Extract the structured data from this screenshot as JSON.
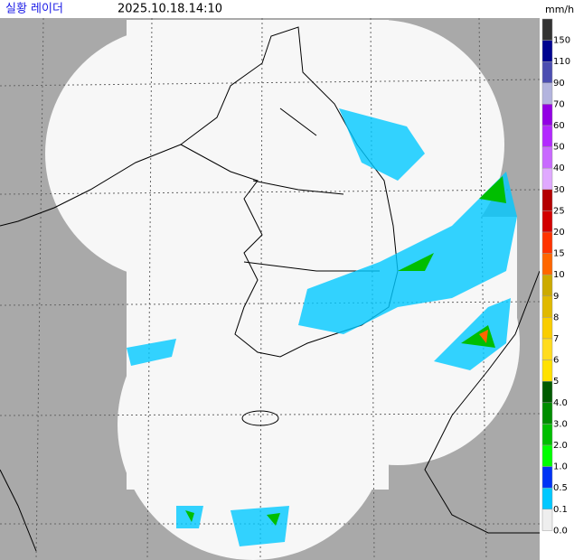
{
  "header": {
    "title": "실황 레이더",
    "time": "2025.10.18.14:10",
    "unit": "mm/h"
  },
  "legend": [
    {
      "label": "150",
      "color": "#333333"
    },
    {
      "label": "110",
      "color": "#00038f"
    },
    {
      "label": "90",
      "color": "#4c4eb1"
    },
    {
      "label": "70",
      "color": "#b3b4de"
    },
    {
      "label": "60",
      "color": "#9300e4"
    },
    {
      "label": "50",
      "color": "#b329ff"
    },
    {
      "label": "40",
      "color": "#c969ff"
    },
    {
      "label": "30",
      "color": "#e0a9ff"
    },
    {
      "label": "25",
      "color": "#b40000"
    },
    {
      "label": "20",
      "color": "#d20000"
    },
    {
      "label": "15",
      "color": "#ff3300"
    },
    {
      "label": "10",
      "color": "#ff6600"
    },
    {
      "label": "9",
      "color": "#ccaa00"
    },
    {
      "label": "8",
      "color": "#e0b900"
    },
    {
      "label": "7",
      "color": "#f9cd00"
    },
    {
      "label": "6",
      "color": "#ffdc1f"
    },
    {
      "label": "5",
      "color": "#ffe100"
    },
    {
      "label": "4.0",
      "color": "#005a00"
    },
    {
      "label": "3.0",
      "color": "#008c00"
    },
    {
      "label": "2.0",
      "color": "#00be00"
    },
    {
      "label": "1.0",
      "color": "#00ff00"
    },
    {
      "label": "0.5",
      "color": "#0033f5"
    },
    {
      "label": "0.1",
      "color": "#00c8ff"
    },
    {
      "label": "0.0",
      "color": "#eeeeee"
    }
  ]
}
